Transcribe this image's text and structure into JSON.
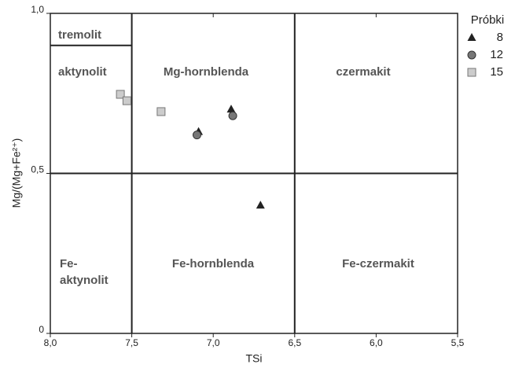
{
  "chart_data": {
    "type": "scatter",
    "x_label": "TSi",
    "y_label": "Mg/(Mg+Fe²⁺)",
    "xlim": [
      8.0,
      5.5
    ],
    "ylim": [
      0,
      1.0
    ],
    "xticks": [
      {
        "value": 8.0,
        "label": "8,0"
      },
      {
        "value": 7.5,
        "label": "7,5"
      },
      {
        "value": 7.0,
        "label": "7,0"
      },
      {
        "value": 6.5,
        "label": "6,5"
      },
      {
        "value": 6.0,
        "label": "6,0"
      },
      {
        "value": 5.5,
        "label": "5,5"
      }
    ],
    "yticks": [
      0,
      {
        "value": 0.5,
        "label": "0,5"
      },
      {
        "value": 1.0,
        "label": "1,0"
      }
    ],
    "boundaries": {
      "vertical": [
        7.5,
        6.5
      ],
      "horizontal": [
        0.5
      ],
      "tremolit": 0.9
    },
    "regions": [
      {
        "lines": [
          "tremolit"
        ]
      },
      {
        "lines": [
          "aktynolit"
        ]
      },
      {
        "lines": [
          "Mg-hornblenda"
        ]
      },
      {
        "lines": [
          "czermakit"
        ]
      },
      {
        "lines": [
          "Fe-",
          "aktynolit"
        ]
      },
      {
        "lines": [
          "Fe-hornblenda"
        ]
      },
      {
        "lines": [
          "Fe-czermakit"
        ]
      }
    ],
    "legend_title": "Próbki",
    "series": [
      {
        "name": "8",
        "marker": "triangle",
        "color": "#222222",
        "x": [
          7.09,
          6.89,
          6.71
        ],
        "values": [
          0.63,
          0.7,
          0.4
        ]
      },
      {
        "name": "12",
        "marker": "circle",
        "color": "#777777",
        "x": [
          7.1,
          6.88
        ],
        "values": [
          0.62,
          0.68
        ]
      },
      {
        "name": "15",
        "marker": "square",
        "color": "#cccccc",
        "x": [
          7.57,
          7.53,
          7.32
        ],
        "values": [
          0.747,
          0.727,
          0.693
        ]
      }
    ]
  }
}
